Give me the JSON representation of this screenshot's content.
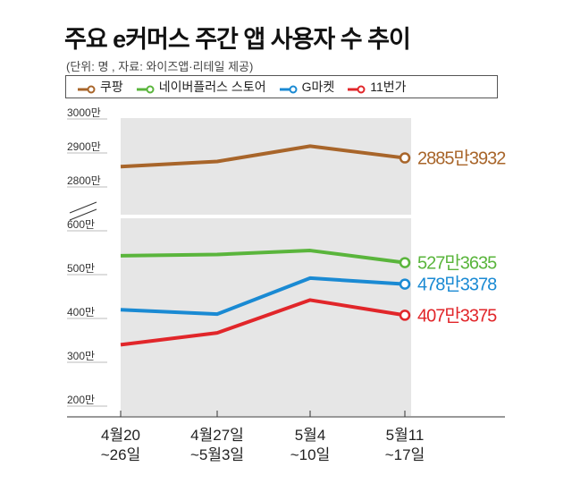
{
  "title": "주요 e커머스 주간 앱 사용자 수 추이",
  "source": "(단위: 명 , 자료: 와이즈앱·리테일 제공)",
  "chart_data": {
    "type": "line",
    "categories": [
      [
        "4월20",
        "~26일"
      ],
      [
        "4월27일",
        "~5월3일"
      ],
      [
        "5월4",
        "~10일"
      ],
      [
        "5월11",
        "~17일"
      ]
    ],
    "axis_break": true,
    "upper_ticks": [
      "3000만",
      "2900만",
      "2800만"
    ],
    "lower_ticks": [
      "600만",
      "500만",
      "400만",
      "300만",
      "200만"
    ],
    "ylim_upper": [
      2800,
      3000
    ],
    "ylim_lower": [
      200,
      600
    ],
    "value_unit": "만",
    "series": [
      {
        "name": "쿠팡",
        "color": "#a8652a",
        "values": [
          2860,
          2875,
          2920,
          2885.3932
        ],
        "end_label": "2885만3932"
      },
      {
        "name": "네이버플러스 스토어",
        "color": "#5ab53c",
        "values": [
          543,
          546,
          555,
          527.3635
        ],
        "end_label": "527만3635"
      },
      {
        "name": "G마켓",
        "color": "#1a8ad3",
        "values": [
          420,
          410,
          492,
          478.3378
        ],
        "end_label": "478만3378"
      },
      {
        "name": "11번가",
        "color": "#e1262a",
        "values": [
          340,
          367,
          442,
          407.3375
        ],
        "end_label": "407만3375"
      }
    ]
  }
}
